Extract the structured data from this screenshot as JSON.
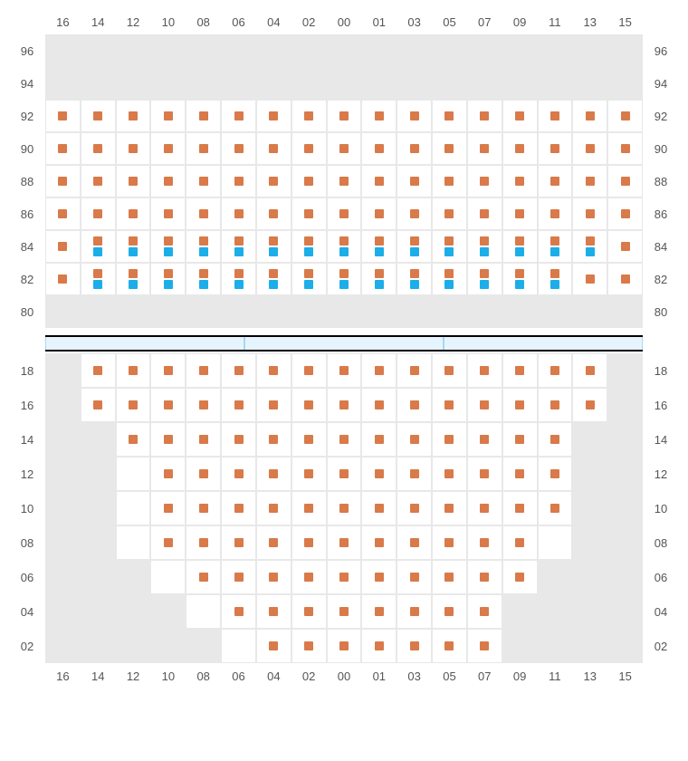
{
  "chart": {
    "type": "seating-map",
    "background_color": "#ffffff",
    "empty_cell_color": "#e8e8e8",
    "available_cell_color": "#ffffff",
    "grid_line_color": "#e8e8e8",
    "label_color": "#555555",
    "label_fontsize": 13,
    "seat_colors": {
      "orange": "#d97a4a",
      "blue": "#1caee8"
    },
    "seat_size": 10,
    "columns": [
      "16",
      "14",
      "12",
      "10",
      "08",
      "06",
      "04",
      "02",
      "00",
      "01",
      "03",
      "05",
      "07",
      "09",
      "11",
      "13",
      "15"
    ],
    "upper": {
      "rows": [
        "96",
        "94",
        "92",
        "90",
        "88",
        "86",
        "84",
        "82",
        "80"
      ],
      "cells": {
        "96": {
          "type": "empty_all"
        },
        "94": {
          "type": "empty_all"
        },
        "92": {
          "type": "full_orange"
        },
        "90": {
          "type": "full_orange"
        },
        "88": {
          "type": "full_orange"
        },
        "86": {
          "type": "full_orange"
        },
        "84": {
          "type": "mixed",
          "pattern": [
            [
              "o"
            ],
            [
              "o",
              "b"
            ],
            [
              "o",
              "b"
            ],
            [
              "o",
              "b"
            ],
            [
              "o",
              "b"
            ],
            [
              "o",
              "b"
            ],
            [
              "o",
              "b"
            ],
            [
              "o",
              "b"
            ],
            [
              "o",
              "b"
            ],
            [
              "o",
              "b"
            ],
            [
              "o",
              "b"
            ],
            [
              "o",
              "b"
            ],
            [
              "o",
              "b"
            ],
            [
              "o",
              "b"
            ],
            [
              "o",
              "b"
            ],
            [
              "o",
              "b"
            ],
            [
              "o"
            ]
          ]
        },
        "82": {
          "type": "mixed",
          "pattern": [
            [
              "o"
            ],
            [
              "o",
              "b"
            ],
            [
              "o",
              "b"
            ],
            [
              "o",
              "b"
            ],
            [
              "o",
              "b"
            ],
            [
              "o",
              "b"
            ],
            [
              "o",
              "b"
            ],
            [
              "o",
              "b"
            ],
            [
              "o",
              "b"
            ],
            [
              "o",
              "b"
            ],
            [
              "o",
              "b"
            ],
            [
              "o",
              "b"
            ],
            [
              "o",
              "b"
            ],
            [
              "o",
              "b"
            ],
            [
              "o",
              "b"
            ],
            [
              "o"
            ],
            [
              "o"
            ]
          ]
        },
        "80": {
          "type": "empty_all"
        }
      }
    },
    "stage": {
      "segments": 3,
      "fill": "#e6f5fd",
      "border": "#a8d8f0",
      "frame": "#000000"
    },
    "lower": {
      "rows": [
        "18",
        "16",
        "14",
        "12",
        "10",
        "08",
        "06",
        "04",
        "02"
      ],
      "cells": {
        "18": {
          "type": "range",
          "start": 1,
          "end": 15,
          "seats": [
            1,
            2,
            3,
            4,
            5,
            6,
            7,
            8,
            9,
            10,
            11,
            12,
            13,
            14,
            15
          ]
        },
        "16": {
          "type": "range",
          "start": 1,
          "end": 15,
          "seats": [
            1,
            2,
            3,
            4,
            5,
            6,
            7,
            8,
            9,
            10,
            11,
            12,
            13,
            14,
            15
          ]
        },
        "14": {
          "type": "range",
          "start": 2,
          "end": 14,
          "seats": [
            2,
            3,
            4,
            5,
            6,
            7,
            8,
            9,
            10,
            11,
            12,
            13,
            14
          ]
        },
        "12": {
          "type": "range",
          "start": 2,
          "end": 14,
          "seats": [
            3,
            4,
            5,
            6,
            7,
            8,
            9,
            10,
            11,
            12,
            13,
            14
          ]
        },
        "10": {
          "type": "range",
          "start": 2,
          "end": 14,
          "seats": [
            3,
            4,
            5,
            6,
            7,
            8,
            9,
            10,
            11,
            12,
            13,
            14
          ]
        },
        "08": {
          "type": "range",
          "start": 2,
          "end": 14,
          "seats": [
            3,
            4,
            5,
            6,
            7,
            8,
            9,
            10,
            11,
            12,
            13
          ]
        },
        "06": {
          "type": "range",
          "start": 3,
          "end": 13,
          "seats": [
            4,
            5,
            6,
            7,
            8,
            9,
            10,
            11,
            12,
            13
          ]
        },
        "04": {
          "type": "range",
          "start": 4,
          "end": 12,
          "seats": [
            5,
            6,
            7,
            8,
            9,
            10,
            11,
            12
          ]
        },
        "02": {
          "type": "range",
          "start": 5,
          "end": 12,
          "seats": [
            6,
            7,
            8,
            9,
            10,
            11,
            12
          ]
        }
      }
    }
  }
}
